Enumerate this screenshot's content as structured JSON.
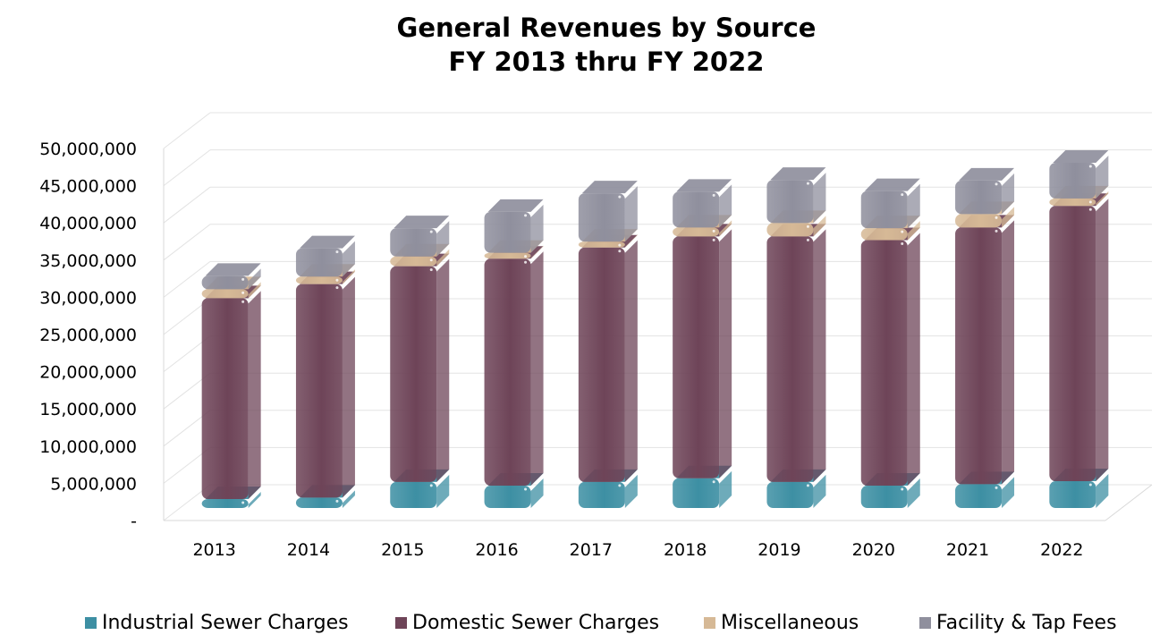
{
  "chart_data": {
    "type": "bar",
    "stacked": true,
    "three_d": true,
    "title": "General Revenues by Source",
    "subtitle": "FY 2013 thru FY 2022",
    "xlabel": "",
    "ylabel": "",
    "categories": [
      "2013",
      "2014",
      "2015",
      "2016",
      "2017",
      "2018",
      "2019",
      "2020",
      "2021",
      "2022"
    ],
    "ylim": [
      0,
      50000000
    ],
    "yticks": [
      "-",
      "5,000,000",
      "10,000,000",
      "15,000,000",
      "20,000,000",
      "25,000,000",
      "30,000,000",
      "35,000,000",
      "40,000,000",
      "45,000,000",
      "50,000,000"
    ],
    "grid": true,
    "legend_position": "bottom",
    "series": [
      {
        "name": "Industrial Sewer Charges",
        "color": "#3d8fa3",
        "values": [
          1200000,
          1400000,
          3500000,
          3000000,
          3500000,
          4000000,
          3500000,
          3000000,
          3200000,
          3600000
        ]
      },
      {
        "name": "Domestic Sewer Charges",
        "color": "#6e4458",
        "values": [
          27000000,
          28700000,
          29000000,
          30500000,
          31500000,
          32500000,
          33000000,
          33000000,
          34500000,
          37000000
        ]
      },
      {
        "name": "Miscellaneous",
        "color": "#d6b996",
        "values": [
          1200000,
          1000000,
          1300000,
          800000,
          800000,
          1200000,
          1800000,
          1600000,
          1800000,
          1000000
        ]
      },
      {
        "name": "Facility & Tap Fees",
        "color": "#8f8f9d",
        "values": [
          1800000,
          3800000,
          3800000,
          5500000,
          6500000,
          4800000,
          5800000,
          5000000,
          4500000,
          4800000
        ]
      }
    ]
  }
}
